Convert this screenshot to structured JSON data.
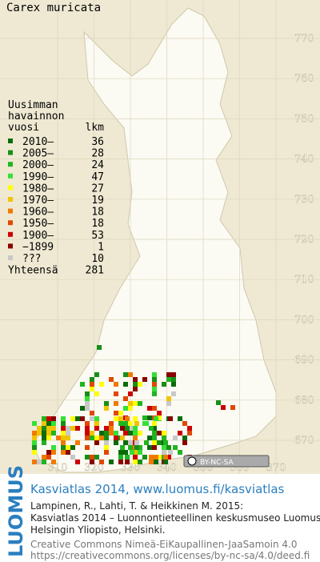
{
  "title": "Carex muricata",
  "grid_y_labels": [
    "770",
    "760",
    "750",
    "740",
    "730",
    "720",
    "710",
    "700",
    "690",
    "680",
    "670"
  ],
  "grid_x_labels": [
    "310",
    "320",
    "330",
    "340",
    "350",
    "360",
    "370"
  ],
  "legend": {
    "heading": [
      "Uusimman",
      "havainnon"
    ],
    "col_headers": [
      "vuosi",
      "lkm"
    ],
    "items": [
      {
        "label": "2010–",
        "count": "36",
        "color": "#0b6b0b"
      },
      {
        "label": "2005–",
        "count": "28",
        "color": "#178f17"
      },
      {
        "label": "2000–",
        "count": "24",
        "color": "#20b420"
      },
      {
        "label": "1990–",
        "count": "47",
        "color": "#35e035"
      },
      {
        "label": "1980–",
        "count": "27",
        "color": "#ffff00"
      },
      {
        "label": "1970–",
        "count": "19",
        "color": "#f0c400"
      },
      {
        "label": "1960–",
        "count": "18",
        "color": "#f07a00"
      },
      {
        "label": "1950–",
        "count": "18",
        "color": "#e04800"
      },
      {
        "label": "1900–",
        "count": "53",
        "color": "#cc0000"
      },
      {
        "label": "−1899",
        "count": "1",
        "color": "#880000"
      },
      {
        "label": "???",
        "count": "10",
        "color": "#c8c8c8"
      }
    ],
    "total": {
      "label": "Yhteensä",
      "count": "281"
    }
  },
  "license_badge": "BY-NC-SA",
  "footer": {
    "logo": "LUOMUS",
    "heading": "Kasviatlas 2014, www.luomus.fi/kasviatlas",
    "citation": [
      "Lampinen, R., Lahti, T. & Heikkinen M. 2015:",
      "Kasviatlas 2014 – Luonnontieteellinen keskusmuseo Luomus,",
      "Helsingin Yliopisto, Helsinki."
    ],
    "license": [
      "Creative Commons Nimeä-EiKaupallinen-JaaSamoin 4.0",
      "https://creativecommons.org/licenses/by-nc-sa/4.0/deed.fi"
    ]
  }
}
